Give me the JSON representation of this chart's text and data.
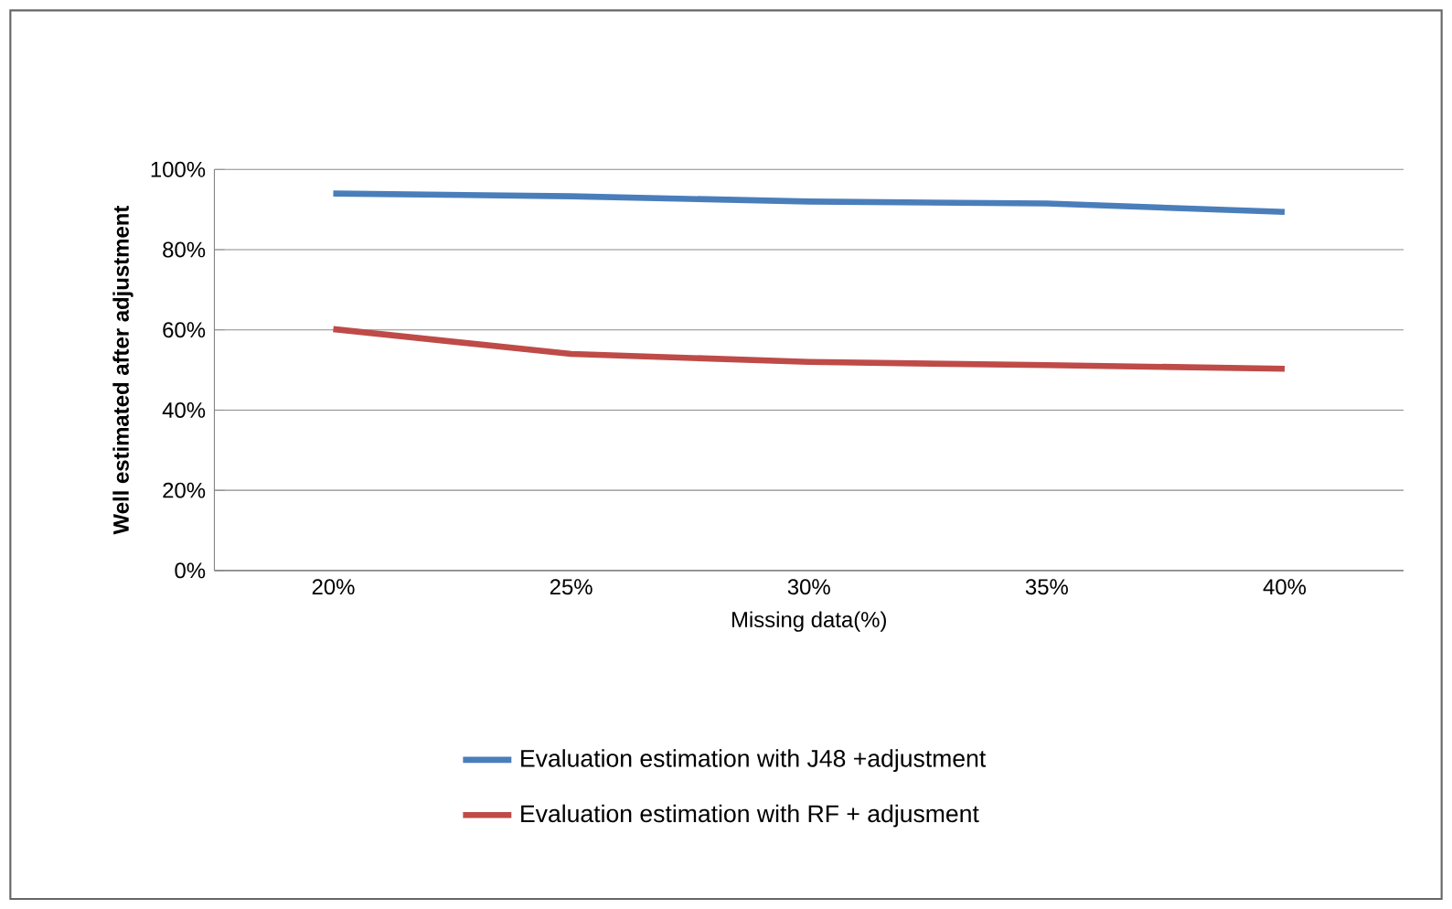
{
  "chart_data": {
    "type": "line",
    "xlabel": "Missing data(%)",
    "ylabel": "Well estimated after adjustment",
    "categories": [
      "20%",
      "25%",
      "30%",
      "35%",
      "40%"
    ],
    "series": [
      {
        "name": "Evaluation estimation with J48 +adjustment",
        "color": "#4a7ebb",
        "values": [
          94,
          93.3,
          92,
          91.5,
          89.4
        ]
      },
      {
        "name": "Evaluation estimation with RF  + adjusment",
        "color": "#be4b48",
        "values": [
          60.2,
          54,
          52,
          51.2,
          50.3
        ]
      }
    ],
    "ylim": [
      0,
      100
    ],
    "yticks": [
      {
        "value": 0,
        "label": "0%"
      },
      {
        "value": 20,
        "label": "20%"
      },
      {
        "value": 40,
        "label": "40%"
      },
      {
        "value": 60,
        "label": "60%"
      },
      {
        "value": 80,
        "label": "80%"
      },
      {
        "value": 100,
        "label": "100%"
      }
    ],
    "grid": "y",
    "legend": "bottom",
    "marker": "none",
    "line_style": "solid"
  }
}
